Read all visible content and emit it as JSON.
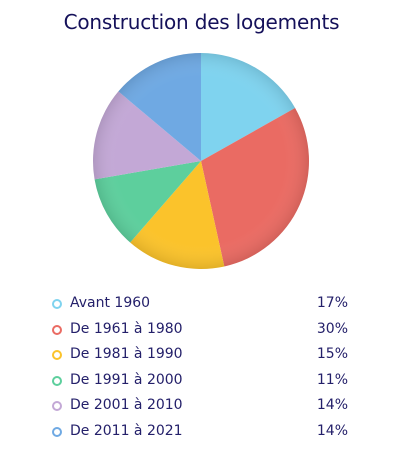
{
  "chart_data": {
    "type": "pie",
    "title": "Construction des logements",
    "categories": [
      "Avant 1960",
      "De 1961 à 1980",
      "De 1981 à 1990",
      "De 1991 à 2000",
      "De 2001 à 2010",
      "De 2011 à 2021"
    ],
    "values": [
      17,
      30,
      15,
      11,
      14,
      14
    ],
    "value_labels": [
      "17%",
      "30%",
      "15%",
      "11%",
      "14%",
      "14%"
    ],
    "colors": [
      "#7fd3ef",
      "#ea6b63",
      "#fbc32b",
      "#5dcf9d",
      "#c3a8d6",
      "#6fa9e3"
    ],
    "legend_position": "bottom"
  }
}
